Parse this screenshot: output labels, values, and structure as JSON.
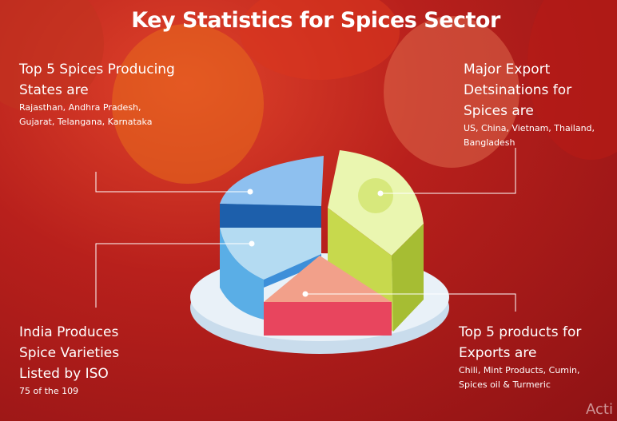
{
  "title": "Key Statistics for Spices Sector",
  "blocks": [
    {
      "heading": "Top 5 Spices Producing States are",
      "detail": "Rajasthan, Andhra Pradesh, Gujarat, Telangana, Karnataka"
    },
    {
      "heading": "Major Export Detsinations for Spices are",
      "detail": "US, China, Vietnam, Thailand, Bangladesh"
    },
    {
      "heading": "India Produces Spice Varieties Listed by ISO",
      "detail": "75 of the 109"
    },
    {
      "heading": "Top 5 products for Exports are",
      "detail": "Chili, Mint Products, Cumin, Spices oil & Turmeric"
    }
  ],
  "watermark": "Acti"
}
